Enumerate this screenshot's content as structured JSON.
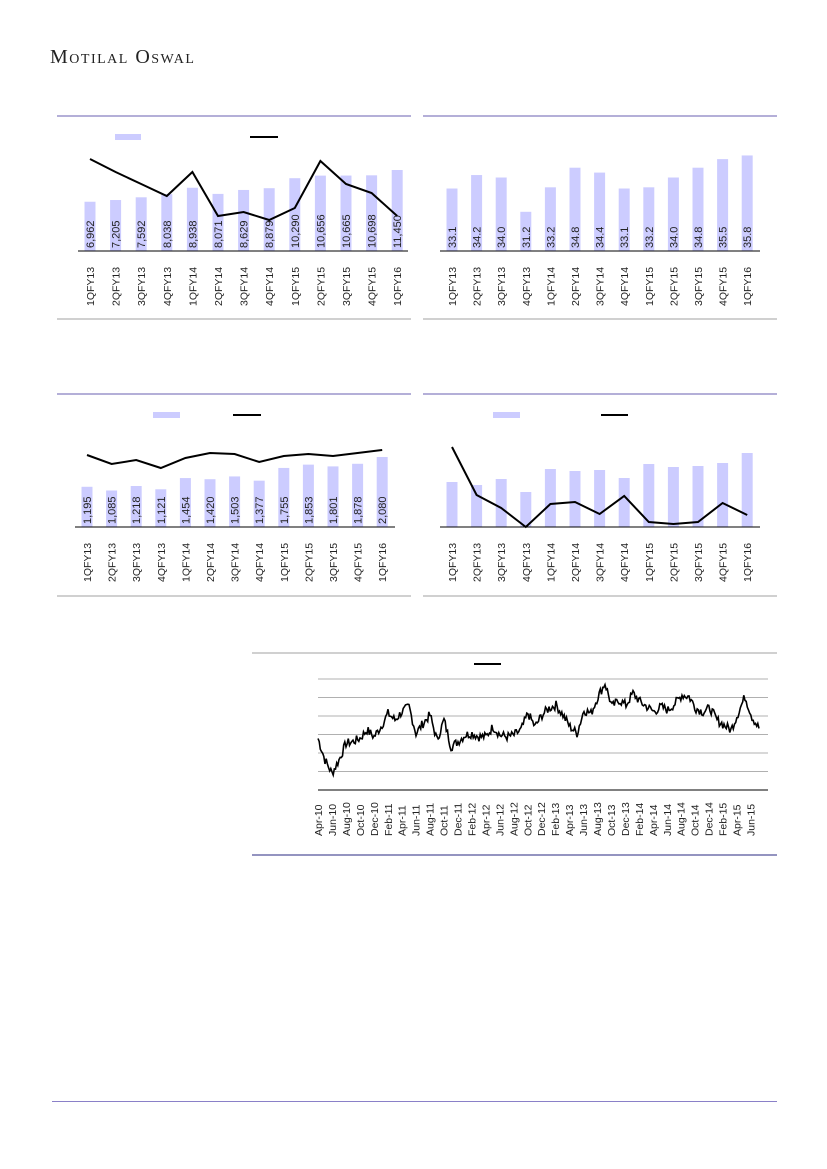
{
  "header": {
    "logo_text": "Motilal Oswal"
  },
  "colors": {
    "bar": "#ccccff",
    "line": "#000000",
    "top_rule": "#6a5fb0",
    "bottom_rule": "#a0a0a0",
    "grid": "#b0b0b0",
    "footer_rule": "#8a80c8"
  },
  "chart_data": [
    {
      "type": "bar+line",
      "categories": [
        "1QFY13",
        "2QFY13",
        "3QFY13",
        "4QFY13",
        "1QFY14",
        "2QFY14",
        "3QFY14",
        "4QFY14",
        "1QFY15",
        "2QFY15",
        "3QFY15",
        "4QFY15",
        "1QFY16"
      ],
      "series": [
        {
          "type": "bar",
          "values": [
            6962,
            7205,
            7592,
            8038,
            8938,
            8071,
            8629,
            8879,
            10290,
            10656,
            10665,
            10698,
            11450
          ],
          "data_labels": [
            "6,962",
            "7,205",
            "7,592",
            "8,038",
            "8,938",
            "8,071",
            "8,629",
            "8,879",
            "10,290",
            "10,656",
            "10,665",
            "10,698",
            "11,450"
          ]
        },
        {
          "type": "line",
          "relative_values": [
            92,
            79,
            67,
            55,
            79,
            35,
            39,
            31,
            43,
            90,
            67,
            58,
            35
          ]
        }
      ],
      "ylim": [
        0,
        11450
      ],
      "grid": false,
      "legend": "top"
    },
    {
      "type": "bar",
      "categories": [
        "1QFY13",
        "2QFY13",
        "3QFY13",
        "4QFY13",
        "1QFY14",
        "2QFY14",
        "3QFY14",
        "4QFY14",
        "1QFY15",
        "2QFY15",
        "3QFY15",
        "4QFY15",
        "1QFY16"
      ],
      "series": [
        {
          "type": "bar",
          "values": [
            33.1,
            34.2,
            34.0,
            31.2,
            33.2,
            34.8,
            34.4,
            33.1,
            33.2,
            34.0,
            34.8,
            35.5,
            35.8
          ],
          "data_labels": [
            "33.1",
            "34.2",
            "34.0",
            "31.2",
            "33.2",
            "34.8",
            "34.4",
            "33.1",
            "33.2",
            "34.0",
            "34.8",
            "35.5",
            "35.8"
          ]
        }
      ],
      "ylim": [
        28,
        36
      ],
      "grid": false
    },
    {
      "type": "bar+line",
      "categories": [
        "1QFY13",
        "2QFY13",
        "3QFY13",
        "4QFY13",
        "1QFY14",
        "2QFY14",
        "3QFY14",
        "4QFY14",
        "1QFY15",
        "2QFY15",
        "3QFY15",
        "4QFY15",
        "1QFY16"
      ],
      "series": [
        {
          "type": "bar",
          "values": [
            1195,
            1085,
            1218,
            1121,
            1454,
            1420,
            1503,
            1377,
            1755,
            1853,
            1801,
            1878,
            2080
          ],
          "data_labels": [
            "1,195",
            "1,085",
            "1,218",
            "1,121",
            "1,454",
            "1,420",
            "1,503",
            "1,377",
            "1,755",
            "1,853",
            "1,801",
            "1,878",
            "2,080"
          ]
        },
        {
          "type": "line",
          "relative_values": [
            72,
            63,
            67,
            59,
            69,
            74,
            73,
            65,
            71,
            73,
            71,
            74,
            77
          ]
        }
      ],
      "ylim": [
        0,
        2080
      ],
      "grid": false,
      "legend": "top"
    },
    {
      "type": "bar+line",
      "categories": [
        "1QFY13",
        "2QFY13",
        "3QFY13",
        "4QFY13",
        "1QFY14",
        "2QFY14",
        "3QFY14",
        "4QFY14",
        "1QFY15",
        "2QFY15",
        "3QFY15",
        "4QFY15",
        "1QFY16"
      ],
      "series": [
        {
          "type": "bar",
          "relative_values": [
            45,
            42,
            48,
            35,
            58,
            56,
            57,
            49,
            63,
            60,
            61,
            64,
            74
          ]
        },
        {
          "type": "line",
          "relative_values": [
            80,
            32,
            19,
            0,
            23,
            25,
            13,
            31,
            5,
            3,
            5,
            24,
            12
          ]
        }
      ],
      "grid": false,
      "legend": "top"
    },
    {
      "type": "line",
      "x_tick_labels": [
        "Apr-10",
        "Jun-10",
        "Aug-10",
        "Oct-10",
        "Dec-10",
        "Feb-11",
        "Apr-11",
        "Jun-11",
        "Aug-11",
        "Oct-11",
        "Dec-11",
        "Feb-12",
        "Apr-12",
        "Jun-12",
        "Aug-12",
        "Oct-12",
        "Dec-12",
        "Feb-13",
        "Apr-13",
        "Jun-13",
        "Aug-13",
        "Oct-13",
        "Dec-13",
        "Feb-14",
        "Apr-14",
        "Jun-14",
        "Aug-14",
        "Oct-14",
        "Dec-14",
        "Feb-15",
        "Apr-15",
        "Jun-15"
      ],
      "x_interval": "monthly",
      "relative_values": [
        2.79,
        1.62,
        0.9,
        1.62,
        2.52,
        2.61,
        2.79,
        3.24,
        2.88,
        3.42,
        4.14,
        3.78,
        4.23,
        4.5,
        3.06,
        3.6,
        4.05,
        2.7,
        3.78,
        2.34,
        2.61,
        2.97,
        3.06,
        2.88,
        2.88,
        3.42,
        2.97,
        2.88,
        2.97,
        3.24,
        4.14,
        3.42,
        4.05,
        4.42,
        4.59,
        4.05,
        3.42,
        3.06,
        4.32,
        4.14,
        5.05,
        5.77,
        4.5,
        4.86,
        4.59,
        5.23,
        4.77,
        4.5,
        4.23,
        4.5,
        4.32,
        4.68,
        5.14,
        5.05,
        4.42,
        4.23,
        4.42,
        3.78,
        3.51,
        3.24,
        4.14,
        5.05,
        3.96,
        3.33
      ],
      "grid": true,
      "gridlines": 6,
      "legend": "top"
    }
  ]
}
